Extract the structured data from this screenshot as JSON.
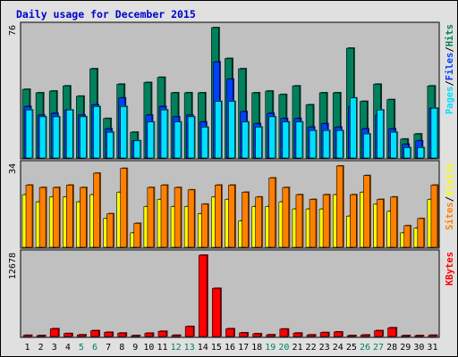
{
  "title": "Daily usage for December 2015",
  "colors": {
    "background": "#c0c0c0",
    "frame_bg": "#e0e0e0",
    "title": "#0000cc",
    "hits": "#00805c",
    "files": "#0040ff",
    "pages": "#00e0ff",
    "visits": "#ffff00",
    "sites": "#ff8000",
    "kbytes": "#ff0000",
    "weekend": "#00805c",
    "weekday": "#000000",
    "separator": "#0000ff"
  },
  "chart_data": [
    {
      "type": "bar",
      "panel": "hits-files-pages",
      "categories": [
        "1",
        "2",
        "3",
        "4",
        "5",
        "6",
        "7",
        "8",
        "9",
        "10",
        "11",
        "12",
        "13",
        "14",
        "15",
        "16",
        "17",
        "18",
        "19",
        "20",
        "21",
        "22",
        "23",
        "24",
        "25",
        "26",
        "27",
        "28",
        "29",
        "30",
        "31"
      ],
      "weekend_days": [
        "5",
        "6",
        "12",
        "13",
        "19",
        "20",
        "26",
        "27"
      ],
      "ymax_label": "76",
      "legend": [
        {
          "text": "Pages",
          "color": "#00e0ff"
        },
        {
          "text": "/",
          "color": "#000000"
        },
        {
          "text": "Files",
          "color": "#0040ff"
        },
        {
          "text": "/",
          "color": "#000000"
        },
        {
          "text": "Hits",
          "color": "#00805c"
        }
      ],
      "series": [
        {
          "key": "hits",
          "values": [
            40,
            38,
            39,
            42,
            36,
            52,
            23,
            43,
            15,
            44,
            47,
            38,
            38,
            38,
            76,
            58,
            52,
            38,
            39,
            37,
            42,
            31,
            38,
            38,
            64,
            33,
            43,
            34,
            11,
            14,
            42
          ]
        },
        {
          "key": "files",
          "values": [
            30,
            25,
            26,
            28,
            25,
            31,
            17,
            35,
            10,
            25,
            30,
            24,
            25,
            21,
            56,
            46,
            27,
            20,
            26,
            23,
            23,
            18,
            20,
            18,
            30,
            17,
            25,
            17,
            8,
            10,
            29
          ]
        },
        {
          "key": "pages",
          "values": [
            28,
            24,
            24,
            28,
            24,
            30,
            15,
            30,
            10,
            21,
            28,
            21,
            24,
            18,
            33,
            33,
            21,
            18,
            24,
            21,
            21,
            16,
            16,
            16,
            35,
            14,
            28,
            15,
            6,
            6,
            29
          ]
        }
      ]
    },
    {
      "type": "bar",
      "panel": "visits-sites",
      "categories": [
        "1",
        "2",
        "3",
        "4",
        "5",
        "6",
        "7",
        "8",
        "9",
        "10",
        "11",
        "12",
        "13",
        "14",
        "15",
        "16",
        "17",
        "18",
        "19",
        "20",
        "21",
        "22",
        "23",
        "24",
        "25",
        "26",
        "27",
        "28",
        "29",
        "30",
        "31"
      ],
      "ymax_label": "34",
      "legend": [
        {
          "text": "Sites",
          "color": "#ff8000"
        },
        {
          "text": "/",
          "color": "#000000"
        },
        {
          "text": "Visits",
          "color": "#ffff00"
        }
      ],
      "series": [
        {
          "key": "visits",
          "values": [
            22,
            19,
            21,
            21,
            19,
            22,
            12,
            23,
            6,
            17,
            20,
            17,
            17,
            14,
            21,
            20,
            11,
            17,
            17,
            19,
            16,
            16,
            16,
            22,
            13,
            23,
            18,
            15,
            6,
            8,
            20
          ]
        },
        {
          "key": "sites",
          "values": [
            26,
            25,
            25,
            26,
            25,
            31,
            14,
            33,
            10,
            25,
            26,
            25,
            24,
            18,
            26,
            26,
            23,
            21,
            29,
            25,
            22,
            20,
            22,
            34,
            22,
            30,
            20,
            21,
            9,
            12,
            26
          ]
        }
      ]
    },
    {
      "type": "bar",
      "panel": "kbytes",
      "categories": [
        "1",
        "2",
        "3",
        "4",
        "5",
        "6",
        "7",
        "8",
        "9",
        "10",
        "11",
        "12",
        "13",
        "14",
        "15",
        "16",
        "17",
        "18",
        "19",
        "20",
        "21",
        "22",
        "23",
        "24",
        "25",
        "26",
        "27",
        "28",
        "29",
        "30",
        "31"
      ],
      "ymax_label": "12678",
      "legend": [
        {
          "text": "KBytes",
          "color": "#ff0000"
        }
      ],
      "series": [
        {
          "key": "kbytes",
          "values": [
            170,
            130,
            1200,
            450,
            250,
            900,
            650,
            520,
            140,
            500,
            800,
            180,
            1550,
            12678,
            7500,
            1200,
            560,
            420,
            260,
            1150,
            520,
            240,
            600,
            700,
            140,
            220,
            900,
            1350,
            100,
            100,
            180
          ]
        }
      ]
    }
  ]
}
